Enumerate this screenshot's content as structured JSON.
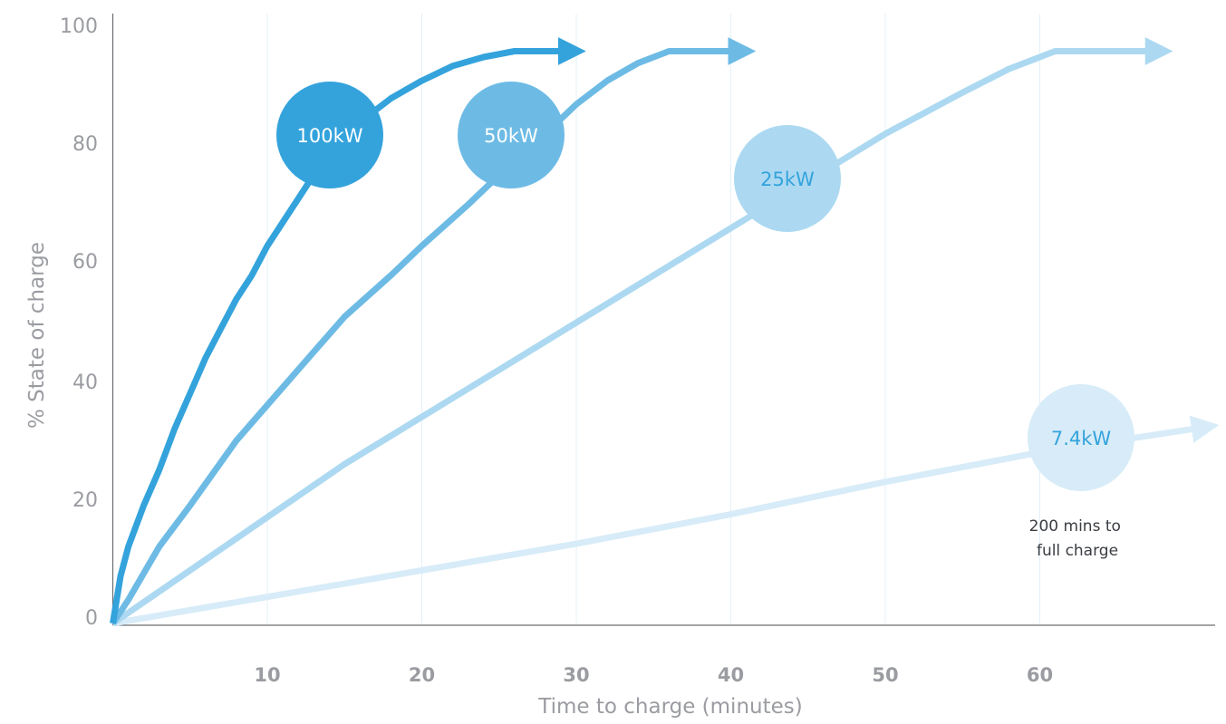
{
  "chart_data": {
    "type": "line",
    "xlabel": "Time to charge (minutes)",
    "ylabel": "% State of charge",
    "xlim": [
      0,
      70
    ],
    "ylim": [
      0,
      100
    ],
    "x_ticks": [
      "10",
      "20",
      "30",
      "40",
      "50",
      "60"
    ],
    "y_ticks": [
      "0",
      "20",
      "40",
      "60",
      "80",
      "100"
    ],
    "grid": "vertical",
    "series": [
      {
        "name": "100kW",
        "color": "#34a3dc",
        "x": [
          0,
          0.5,
          1,
          2,
          3,
          4,
          5,
          6,
          7,
          8,
          9,
          10,
          11,
          12,
          13,
          14,
          15,
          16,
          18,
          20,
          22,
          24,
          26,
          28,
          29
        ],
        "values": [
          0,
          8,
          13,
          20,
          26,
          33,
          39,
          45,
          50,
          55,
          59,
          64,
          68,
          72,
          76,
          79,
          82,
          85,
          89,
          92,
          94.5,
          96,
          97,
          97,
          97
        ]
      },
      {
        "name": "50kW",
        "color": "#6dbbe5",
        "x": [
          0,
          1,
          3,
          5,
          8,
          10,
          13,
          15,
          18,
          20,
          23,
          25,
          28,
          30,
          32,
          34,
          36,
          38,
          40
        ],
        "values": [
          0,
          4,
          13,
          20,
          31,
          37,
          46,
          52,
          59,
          64,
          71,
          76,
          83,
          88,
          92,
          95,
          97,
          97,
          97
        ]
      },
      {
        "name": "25kW",
        "color": "#acd9f1",
        "x": [
          0,
          5,
          10,
          15,
          20,
          25,
          30,
          35,
          40,
          45,
          50,
          55,
          58,
          60,
          61,
          64,
          67
        ],
        "values": [
          0,
          9,
          18,
          27,
          35,
          43,
          51,
          59,
          67,
          75,
          83,
          90,
          94,
          96,
          97,
          97,
          97
        ]
      },
      {
        "name": "7.4kW",
        "color": "#d7ecf8",
        "x": [
          0,
          10,
          20,
          30,
          40,
          50,
          60,
          70
        ],
        "values": [
          0,
          4.5,
          9,
          13.5,
          18.5,
          24,
          29,
          33
        ]
      }
    ],
    "annotation": "200 mins to\nfull charge",
    "annotation_lines": [
      "200 mins to",
      "full charge"
    ]
  }
}
